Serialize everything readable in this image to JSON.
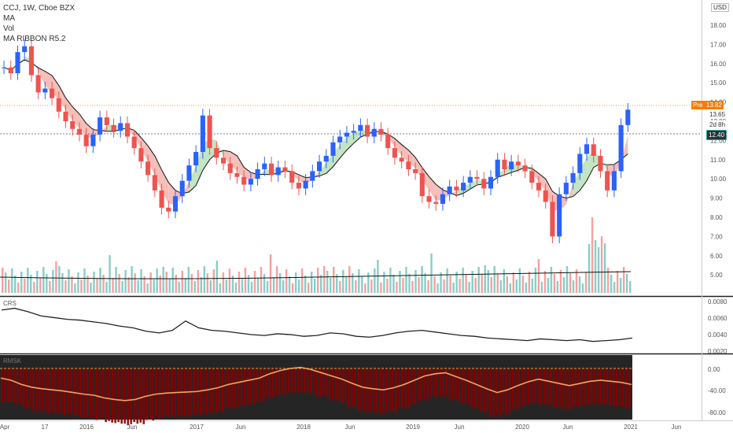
{
  "legend": {
    "line1": "CCJ, 1W, Cboe BZX",
    "line2": "MA",
    "line3": "Vol",
    "line4": "MA RIBBON R5.2"
  },
  "currency_button": "USD",
  "pane_labels": {
    "crs": "CRS",
    "rmsk": "RMSK"
  },
  "tags": {
    "pre_label": "Pre",
    "pre_value": "13.82",
    "price_65": "13.65",
    "countdown": "2d 8h",
    "price_40": "12.40"
  },
  "colors": {
    "up": "#26a69a",
    "down": "#ef5350",
    "up_candle": "#2962ff",
    "down_candle": "#ef5350",
    "ribbon_green": "#b7e1b9",
    "ribbon_red": "#f5b3ac",
    "rmsk_bg": "#252525",
    "rmsk_bar": "#8b0000",
    "rmsk_line": "#f4a460"
  },
  "chart_data": {
    "type": "candlestick",
    "y_axis_price": [
      "18.00",
      "17.00",
      "16.00",
      "15.00",
      "14.00",
      "13.00",
      "12.00",
      "11.00",
      "10.00",
      "9.00",
      "8.00",
      "7.00",
      "6.00",
      "5.00"
    ],
    "y_axis_crs": [
      "0.0080",
      "0.0060",
      "0.0040",
      "0.0020"
    ],
    "y_axis_rmsk": [
      "0.00",
      "-40.00",
      "-80.00"
    ],
    "x_axis": [
      "Apr",
      "17",
      "2016",
      "Jun",
      "2017",
      "Jun",
      "2018",
      "Jun",
      "2019",
      "Jun",
      "2020",
      "Jun",
      "2021",
      "Jun"
    ],
    "price_close": [
      15.8,
      15.5,
      16.6,
      16.9,
      15.4,
      14.5,
      14.7,
      14.2,
      13.5,
      13.0,
      12.6,
      12.3,
      11.7,
      12.3,
      13.2,
      12.8,
      12.5,
      12.9,
      12.2,
      11.6,
      10.9,
      10.2,
      9.4,
      8.5,
      8.3,
      9.1,
      9.9,
      10.7,
      11.4,
      13.3,
      11.6,
      11.1,
      10.8,
      10.3,
      10.1,
      9.7,
      10.0,
      10.5,
      10.8,
      10.2,
      10.6,
      10.4,
      9.8,
      9.5,
      9.9,
      10.4,
      10.9,
      11.2,
      11.9,
      12.2,
      12.4,
      12.5,
      12.8,
      12.2,
      12.6,
      12.3,
      11.6,
      11.1,
      10.9,
      10.5,
      10.3,
      9.1,
      8.8,
      8.7,
      9.2,
      9.6,
      9.4,
      9.8,
      10.1,
      10.0,
      9.5,
      10.1,
      11.0,
      10.5,
      10.9,
      10.7,
      10.4,
      9.8,
      9.4,
      8.8,
      7.0,
      9.2,
      9.8,
      10.3,
      11.3,
      11.8,
      11.2,
      10.4,
      9.4,
      10.4,
      12.8,
      13.6
    ],
    "crs_values": [
      0.0071,
      0.0073,
      0.0069,
      0.0064,
      0.0062,
      0.006,
      0.0059,
      0.0057,
      0.0055,
      0.0052,
      0.005,
      0.0046,
      0.0044,
      0.0047,
      0.0058,
      0.005,
      0.0047,
      0.0046,
      0.0044,
      0.0042,
      0.0041,
      0.0043,
      0.0042,
      0.004,
      0.0041,
      0.0044,
      0.0043,
      0.004,
      0.0039,
      0.0041,
      0.0044,
      0.0046,
      0.0047,
      0.0045,
      0.0043,
      0.0041,
      0.004,
      0.0038,
      0.0037,
      0.0036,
      0.0035,
      0.0037,
      0.0036,
      0.0035,
      0.0036,
      0.0034,
      0.0035,
      0.0036,
      0.0038
    ],
    "rmsk_values": [
      -18,
      -22,
      -30,
      -35,
      -38,
      -40,
      -42,
      -45,
      -48,
      -50,
      -55,
      -58,
      -60,
      -58,
      -52,
      -48,
      -46,
      -45,
      -44,
      -43,
      -40,
      -36,
      -30,
      -26,
      -22,
      -18,
      -10,
      -4,
      0,
      2,
      -2,
      -8,
      -14,
      -20,
      -28,
      -35,
      -38,
      -40,
      -36,
      -30,
      -22,
      -14,
      -10,
      -8,
      -15,
      -22,
      -30,
      -38,
      -45,
      -40,
      -32,
      -25,
      -20,
      -24,
      -28,
      -32,
      -28,
      -24,
      -22,
      -24,
      -26,
      -30
    ]
  }
}
